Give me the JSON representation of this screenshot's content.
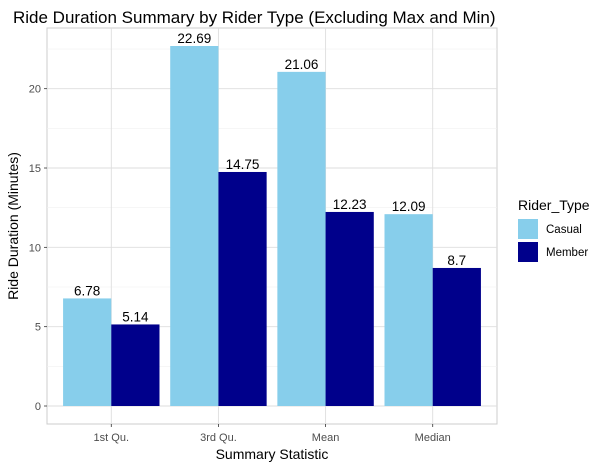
{
  "chart_data": {
    "type": "bar",
    "title": "Ride Duration Summary by Rider Type (Excluding Max and Min)",
    "xlabel": "Summary Statistic",
    "ylabel": "Ride Duration (Minutes)",
    "categories": [
      "1st Qu.",
      "3rd Qu.",
      "Mean",
      "Median"
    ],
    "series": [
      {
        "name": "Casual",
        "values": [
          6.78,
          22.69,
          21.06,
          12.09
        ],
        "labels": [
          "6.78",
          "22.69",
          "21.06",
          "12.09"
        ],
        "color": "#87CEEB"
      },
      {
        "name": "Member",
        "values": [
          5.14,
          14.75,
          12.23,
          8.7
        ],
        "labels": [
          "5.14",
          "14.75",
          "12.23",
          "8.7"
        ],
        "color": "#00008B"
      }
    ],
    "ylim": [
      -1.1345,
      23.8245
    ],
    "yticks": [
      0,
      5,
      10,
      15,
      20
    ],
    "ytick_labels": [
      "0",
      "5",
      "10",
      "15",
      "20"
    ],
    "grid": true,
    "legend": {
      "title": "Rider_Type",
      "position": "right"
    }
  }
}
